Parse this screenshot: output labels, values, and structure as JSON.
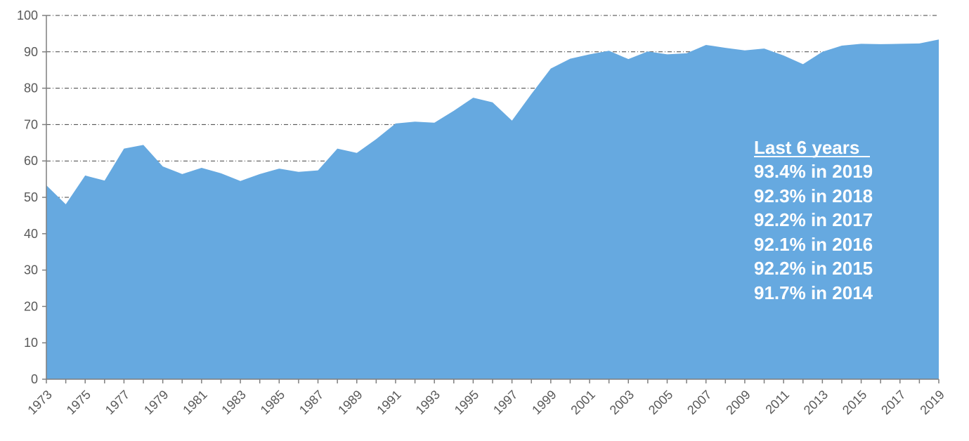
{
  "chart_data": {
    "type": "area",
    "x": [
      1973,
      1974,
      1975,
      1976,
      1977,
      1978,
      1979,
      1980,
      1981,
      1982,
      1983,
      1984,
      1985,
      1986,
      1987,
      1988,
      1989,
      1990,
      1991,
      1992,
      1993,
      1994,
      1995,
      1996,
      1997,
      1998,
      1999,
      2000,
      2001,
      2002,
      2003,
      2004,
      2005,
      2006,
      2007,
      2008,
      2009,
      2010,
      2011,
      2012,
      2013,
      2014,
      2015,
      2016,
      2017,
      2018,
      2019
    ],
    "series": [
      {
        "values": [
          53.3,
          48.1,
          56.0,
          54.6,
          63.4,
          64.4,
          58.5,
          56.4,
          58.1,
          56.6,
          54.5,
          56.4,
          57.9,
          57.0,
          57.4,
          63.4,
          62.2,
          66.0,
          70.3,
          70.8,
          70.5,
          73.8,
          77.4,
          76.1,
          71.1,
          78.4,
          85.4,
          88.1,
          89.3,
          90.3,
          88.0,
          90.1,
          89.3,
          89.6,
          91.9,
          91.1,
          90.4,
          90.9,
          89.0,
          86.6,
          90.0,
          91.7,
          92.2,
          92.1,
          92.2,
          92.3,
          93.4
        ]
      }
    ],
    "xticks": [
      "1973",
      "1975",
      "1977",
      "1979",
      "1981",
      "1983",
      "1985",
      "1987",
      "1989",
      "1991",
      "1993",
      "1995",
      "1997",
      "1999",
      "2001",
      "2003",
      "2005",
      "2007",
      "2009",
      "2011",
      "2013",
      "2015",
      "2017",
      "2019"
    ],
    "yticks": [
      "0",
      "10",
      "20",
      "30",
      "40",
      "50",
      "60",
      "70",
      "80",
      "90",
      "100"
    ],
    "ylim": [
      0,
      100
    ],
    "xlim": [
      1973,
      2019
    ],
    "grid": "horizontal dash-dot",
    "fill_color": "#66a9e0",
    "annotation": {
      "heading": "Last 6 years",
      "lines": [
        "93.4% in 2019",
        "92.3% in 2018",
        "92.2% in 2017",
        "92.1% in 2016",
        "92.2% in 2015",
        "91.7% in 2014"
      ]
    }
  }
}
